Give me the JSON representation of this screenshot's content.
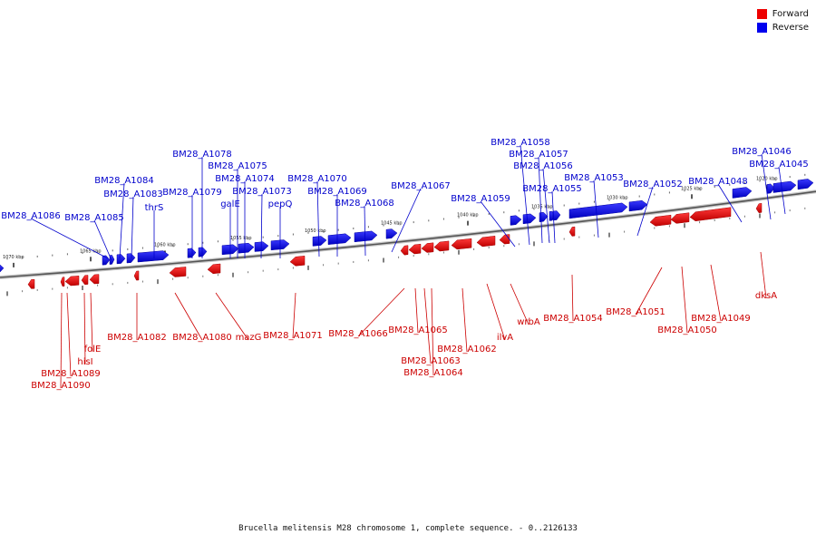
{
  "caption": "Brucella melitensis M28 chromosome 1, complete sequence. - 0..2126133",
  "legend": [
    {
      "label": "Forward",
      "color": "#ee0000"
    },
    {
      "label": "Reverse",
      "color": "#0000ee"
    }
  ],
  "ticks": [
    "1070 kbp",
    "1065 kbp",
    "1060 kbp",
    "1055 kbp",
    "1050 kbp",
    "1045 kbp",
    "1040 kbp",
    "1035 kbp",
    "1030 kbp",
    "1025 kbp",
    "1020 kbp"
  ],
  "reverse_labels": [
    "BM28_A1086",
    "BM28_A1085",
    "BM28_A1084",
    "BM28_A1083",
    "thrS",
    "BM28_A1079",
    "BM28_A1078",
    "galE",
    "BM28_A1075",
    "BM28_A1074",
    "BM28_A1073",
    "pepQ",
    "BM28_A1070",
    "BM28_A1069",
    "BM28_A1068",
    "BM28_A1067",
    "BM28_A1059",
    "BM28_A1058",
    "BM28_A1057",
    "BM28_A1056",
    "BM28_A1055",
    "BM28_A1053",
    "BM28_A1052",
    "BM28_A1048",
    "BM28_A1046",
    "BM28_A1045"
  ],
  "forward_labels": [
    "folE",
    "hisI",
    "BM28_A1089",
    "BM28_A1090",
    "BM28_A1082",
    "BM28_A1080",
    "mazG",
    "BM28_A1071",
    "BM28_A1066",
    "BM28_A1065",
    "BM28_A1063",
    "BM28_A1064",
    "BM28_A1062",
    "ilvA",
    "wrbA",
    "BM28_A1054",
    "BM28_A1051",
    "BM28_A1050",
    "BM28_A1049",
    "dksA"
  ]
}
